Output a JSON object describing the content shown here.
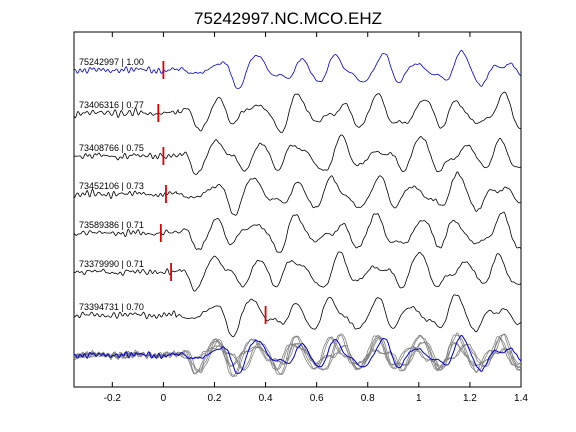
{
  "chart_data": {
    "type": "line",
    "title": "75242997.NC.MCO.EHZ",
    "xlabel": "",
    "ylabel": "",
    "xlim": [
      -0.35,
      1.4
    ],
    "x_ticks": [
      -0.2,
      0,
      0.2,
      0.4,
      0.6,
      0.8,
      1,
      1.2,
      1.4
    ],
    "x_tick_labels": [
      "-0.2",
      "0",
      "0.2",
      "0.4",
      "0.6",
      "0.8",
      "1",
      "1.2",
      "1.4"
    ],
    "grid": false,
    "pick_color": "#e00000",
    "reference_color": "#0000cc",
    "trace_color": "#000000",
    "stack_color": "#808080",
    "traces": [
      {
        "label": "75242997 | 1.00",
        "correlation": 1.0,
        "pick_time": 0.0,
        "reference": true
      },
      {
        "label": "73406316 | 0.77",
        "correlation": 0.77,
        "pick_time": -0.02,
        "reference": false
      },
      {
        "label": "73408766 | 0.75",
        "correlation": 0.75,
        "pick_time": 0.0,
        "reference": false
      },
      {
        "label": "73452106 | 0.73",
        "correlation": 0.73,
        "pick_time": 0.01,
        "reference": false
      },
      {
        "label": "73589386 | 0.71",
        "correlation": 0.71,
        "pick_time": -0.01,
        "reference": false
      },
      {
        "label": "73379990 | 0.71",
        "correlation": 0.71,
        "pick_time": 0.03,
        "reference": false
      },
      {
        "label": "73394731 | 0.70",
        "correlation": 0.7,
        "pick_time": 0.4,
        "reference": false
      }
    ]
  }
}
